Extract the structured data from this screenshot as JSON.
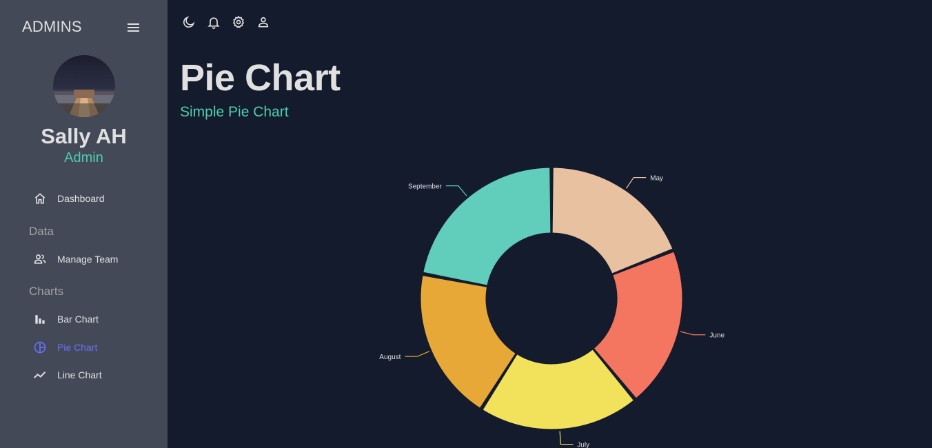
{
  "sidebar": {
    "brand": "ADMINS",
    "user": {
      "name": "Sally AH",
      "role": "Admin"
    },
    "items": [
      {
        "label": "Dashboard",
        "icon": "home-icon"
      },
      {
        "label": "Manage Team",
        "icon": "people-icon"
      },
      {
        "label": "Bar Chart",
        "icon": "bar-chart-icon"
      },
      {
        "label": "Pie Chart",
        "icon": "pie-chart-icon",
        "active": true
      },
      {
        "label": "Line Chart",
        "icon": "line-chart-icon"
      }
    ],
    "sections": [
      "Data",
      "Charts"
    ]
  },
  "topbar": {
    "icons": [
      "dark-mode-icon",
      "notifications-icon",
      "settings-icon",
      "profile-icon"
    ]
  },
  "header": {
    "title": "Pie Chart",
    "subtitle": "Simple Pie Chart"
  },
  "colors": {
    "background": "#141b2d",
    "sidebar": "#434957",
    "accent_green": "#4cceac",
    "accent_blue": "#6870fa"
  },
  "chart_data": {
    "type": "pie",
    "style": "donut",
    "categories": [
      "May",
      "June",
      "July",
      "August",
      "September"
    ],
    "values": [
      19,
      20,
      20,
      19,
      22
    ],
    "colors": [
      "#e8c1a0",
      "#f47560",
      "#f1e15b",
      "#e8a838",
      "#61cdbb"
    ]
  }
}
